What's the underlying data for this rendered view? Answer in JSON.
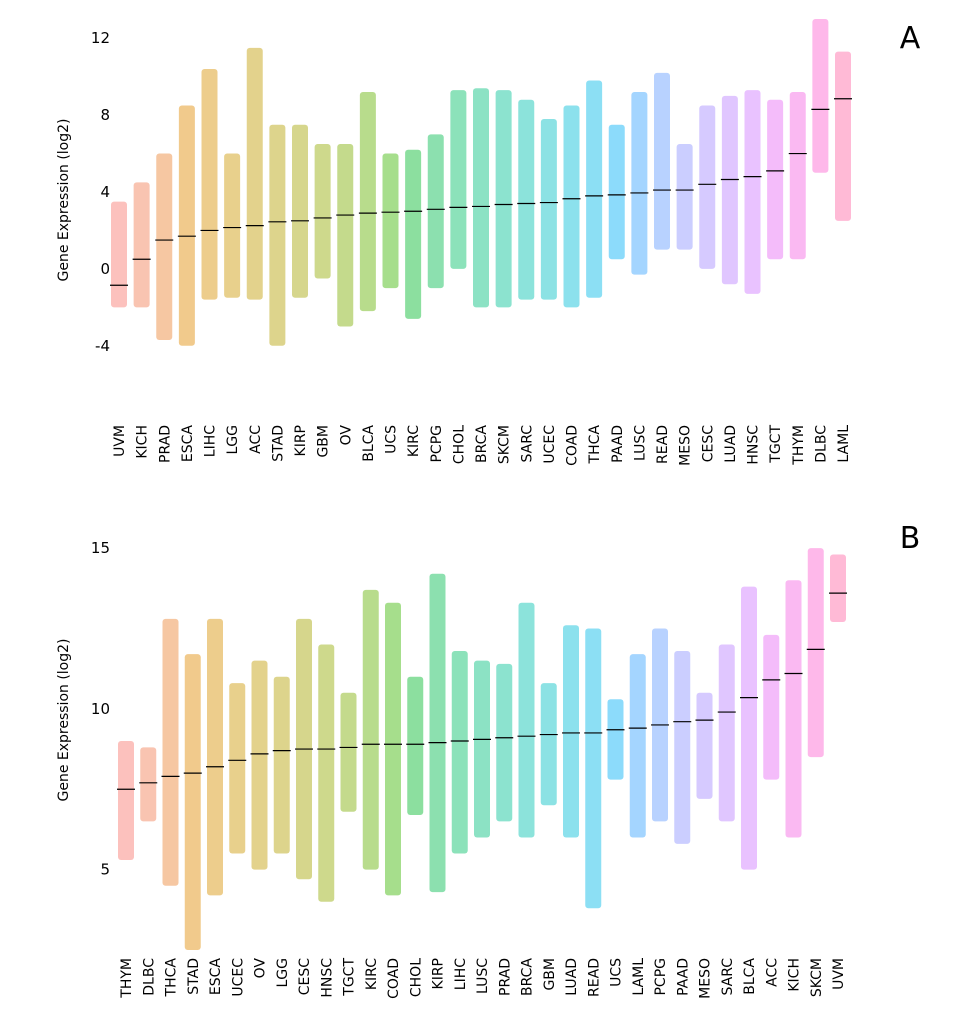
{
  "chart_data": [
    {
      "type": "strip",
      "panel": "A",
      "ylabel": "Gene Expression (log2)",
      "categories": [
        "UVM",
        "KICH",
        "PRAD",
        "ESCA",
        "LIHC",
        "LGG",
        "ACC",
        "STAD",
        "KIRP",
        "GBM",
        "OV",
        "BLCA",
        "UCS",
        "KIRC",
        "PCPG",
        "CHOL",
        "BRCA",
        "SKCM",
        "SARC",
        "UCEC",
        "COAD",
        "THCA",
        "PAAD",
        "LUSC",
        "READ",
        "MESO",
        "CESC",
        "LUAD",
        "HNSC",
        "TGCT",
        "THYM",
        "DLBC",
        "LAML"
      ],
      "values": [
        -0.85,
        0.5,
        1.5,
        1.7,
        2.0,
        2.15,
        2.25,
        2.45,
        2.5,
        2.65,
        2.8,
        2.9,
        2.95,
        3.0,
        3.1,
        3.2,
        3.25,
        3.35,
        3.4,
        3.45,
        3.65,
        3.8,
        3.85,
        3.95,
        4.1,
        4.1,
        4.4,
        4.65,
        4.8,
        5.1,
        6.0,
        8.3,
        8.85
      ],
      "low": [
        -2,
        -2,
        -3.7,
        -4,
        -1.6,
        -1.5,
        -1.6,
        -4,
        -1.5,
        -0.5,
        -3,
        -2.2,
        -1,
        -2.6,
        -1,
        0,
        -2,
        -2,
        -1.6,
        -1.6,
        -2,
        -1.5,
        0.5,
        -0.3,
        1,
        1,
        0,
        -0.8,
        -1.3,
        0.5,
        0.5,
        5,
        2.5
      ],
      "high": [
        3.5,
        4.5,
        6,
        8.5,
        10.4,
        6,
        11.5,
        7.5,
        7.5,
        6.5,
        6.5,
        9.2,
        6,
        6.2,
        7,
        9.3,
        9.4,
        9.3,
        8.8,
        7.8,
        8.5,
        9.8,
        7.5,
        9.2,
        10.2,
        6.5,
        8.5,
        9,
        9.3,
        8.8,
        9.2,
        13,
        11.3
      ],
      "colors": [
        "#F8766D",
        "#F27D52",
        "#EA8331",
        "#E18A00",
        "#D89000",
        "#CD9600",
        "#C09B00",
        "#B3A000",
        "#A3A500",
        "#92AA00",
        "#7CAE00",
        "#62B200",
        "#39B600",
        "#00B92A",
        "#00BB4E",
        "#00BE67",
        "#00BF7D",
        "#00C094",
        "#00C0AF",
        "#00BFC4",
        "#00BCD8",
        "#00B8E7",
        "#00B0F6",
        "#35A2FF",
        "#619CFF",
        "#8B93FF",
        "#A58AFF",
        "#BB81FF",
        "#CF78FF",
        "#E76BF3",
        "#F564E3",
        "#FD61D1",
        "#FF67A4"
      ],
      "ylim": [
        -5,
        13
      ],
      "yticks": [
        -4,
        0,
        4,
        8,
        12
      ]
    },
    {
      "type": "strip",
      "panel": "B",
      "ylabel": "Gene Expression (log2)",
      "categories": [
        "THYM",
        "DLBC",
        "THCA",
        "STAD",
        "ESCA",
        "UCEC",
        "OV",
        "LGG",
        "CESC",
        "HNSC",
        "TGCT",
        "KIRC",
        "COAD",
        "CHOL",
        "KIRP",
        "LIHC",
        "LUSC",
        "PRAD",
        "BRCA",
        "GBM",
        "LUAD",
        "READ",
        "UCS",
        "LAML",
        "PCPG",
        "PAAD",
        "MESO",
        "SARC",
        "BLCA",
        "ACC",
        "KICH",
        "SKCM",
        "UVM"
      ],
      "values": [
        7.5,
        7.7,
        7.9,
        8.0,
        8.2,
        8.4,
        8.6,
        8.7,
        8.75,
        8.75,
        8.8,
        8.9,
        8.9,
        8.9,
        8.95,
        9.0,
        9.05,
        9.1,
        9.15,
        9.2,
        9.25,
        9.25,
        9.35,
        9.4,
        9.5,
        9.6,
        9.65,
        9.9,
        10.35,
        10.9,
        11.1,
        11.85,
        13.6
      ],
      "low": [
        5.3,
        6.5,
        4.5,
        2.5,
        4.2,
        5.5,
        5,
        5.5,
        4.7,
        4,
        6.8,
        5,
        4.2,
        6.7,
        4.3,
        5.5,
        6,
        6.5,
        6,
        7,
        6,
        3.8,
        7.8,
        6,
        6.5,
        5.8,
        7.2,
        6.5,
        5,
        7.8,
        6,
        8.5,
        12.7
      ],
      "high": [
        9,
        8.8,
        12.8,
        11.7,
        12.8,
        10.8,
        11.5,
        11,
        12.8,
        12,
        10.5,
        13.7,
        13.3,
        11,
        14.2,
        11.8,
        11.5,
        11.4,
        13.3,
        10.8,
        12.6,
        12.5,
        10.3,
        11.7,
        12.5,
        11.8,
        10.5,
        12,
        13.8,
        12.3,
        14,
        15,
        14.8
      ],
      "colors": [
        "#F8766D",
        "#F27D52",
        "#EA8331",
        "#E18A00",
        "#D89000",
        "#CD9600",
        "#C09B00",
        "#B3A000",
        "#A3A500",
        "#92AA00",
        "#7CAE00",
        "#62B200",
        "#39B600",
        "#00B92A",
        "#00BB4E",
        "#00BE67",
        "#00BF7D",
        "#00C094",
        "#00C0AF",
        "#00BFC4",
        "#00BCD8",
        "#00B8E7",
        "#00B0F6",
        "#35A2FF",
        "#619CFF",
        "#8B93FF",
        "#A58AFF",
        "#BB81FF",
        "#CF78FF",
        "#E76BF3",
        "#F564E3",
        "#FD61D1",
        "#FF67A4"
      ],
      "ylim": [
        2.5,
        15.5
      ],
      "yticks": [
        5,
        10,
        15
      ]
    }
  ]
}
